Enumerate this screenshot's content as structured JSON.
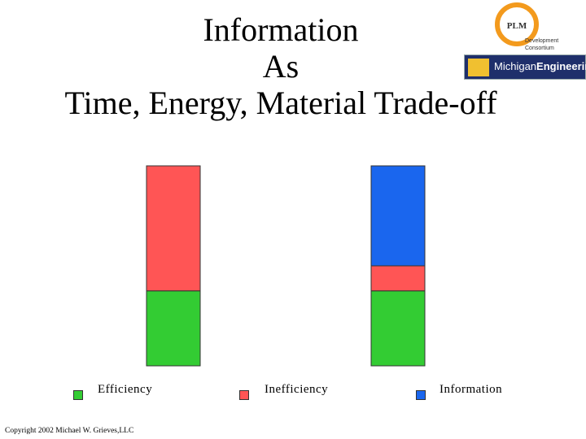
{
  "slide": {
    "title_lines": [
      "Information",
      "As",
      "Time, Energy, Material Trade-off"
    ],
    "copyright": "Copyright 2002 Michael W. Grieves,LLC"
  },
  "logos": {
    "plm": {
      "badge": "PLM",
      "line1": "Development",
      "line2": "Consortium"
    },
    "michigan": {
      "part1": "Michigan",
      "part2": "Engineering"
    }
  },
  "colors": {
    "efficiency": "#33cc33",
    "inefficiency": "#ff5555",
    "information": "#1a66ee"
  },
  "chart_data": {
    "type": "bar",
    "stacked": true,
    "categories": [
      "",
      ""
    ],
    "series": [
      {
        "name": "Efficiency",
        "values": [
          30,
          30
        ],
        "color": "#33cc33"
      },
      {
        "name": "Inefficiency",
        "values": [
          50,
          10
        ],
        "color": "#ff5555"
      },
      {
        "name": "Information",
        "values": [
          0,
          40
        ],
        "color": "#1a66ee"
      }
    ],
    "ylim": [
      0,
      80
    ],
    "grid": false,
    "axes_visible": false,
    "legend_position": "bottom"
  }
}
